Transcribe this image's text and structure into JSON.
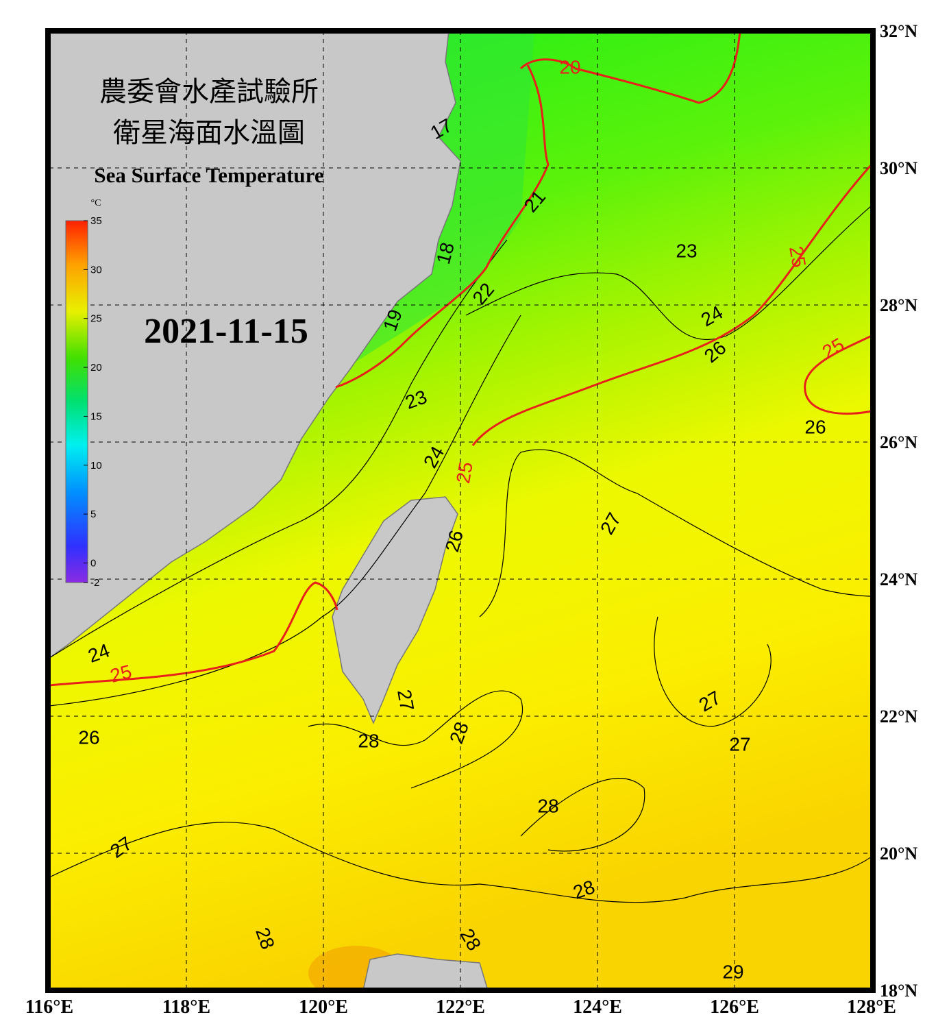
{
  "header": {
    "title_zh_1": "農委會水產試驗所",
    "title_zh_2": "衛星海面水溫圖",
    "title_en": "Sea Surface Temperature",
    "date": "2021-11-15"
  },
  "colorbar": {
    "unit": "°C",
    "range": [
      -2,
      35
    ],
    "ticks": [
      35,
      30,
      25,
      20,
      15,
      10,
      5,
      0,
      -2
    ]
  },
  "map": {
    "xlim": [
      116,
      128
    ],
    "ylim": [
      18,
      32
    ],
    "xticks": [
      {
        "value": 116,
        "label": "116°E"
      },
      {
        "value": 118,
        "label": "118°E"
      },
      {
        "value": 120,
        "label": "120°E"
      },
      {
        "value": 122,
        "label": "122°E"
      },
      {
        "value": 124,
        "label": "124°E"
      },
      {
        "value": 126,
        "label": "126°E"
      },
      {
        "value": 128,
        "label": "128°E"
      }
    ],
    "yticks": [
      {
        "value": 18,
        "label": "18°N"
      },
      {
        "value": 20,
        "label": "20°N"
      },
      {
        "value": 22,
        "label": "22°N"
      },
      {
        "value": 24,
        "label": "24°N"
      },
      {
        "value": 26,
        "label": "26°N"
      },
      {
        "value": 28,
        "label": "28°N"
      },
      {
        "value": 30,
        "label": "30°N"
      },
      {
        "value": 32,
        "label": "32°N"
      }
    ],
    "contour_labels": [
      17,
      18,
      19,
      20,
      21,
      22,
      23,
      23,
      24,
      24,
      24,
      25,
      25,
      25,
      25,
      26,
      26,
      26,
      26,
      27,
      27,
      27,
      27,
      27,
      28,
      28,
      28,
      28,
      28,
      28,
      29
    ]
  }
}
